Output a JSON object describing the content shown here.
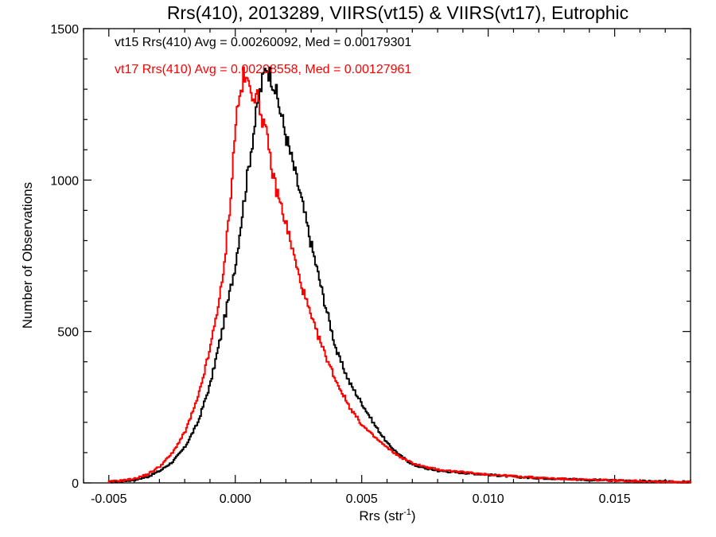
{
  "chart_data": {
    "type": "histogram-step",
    "title": "Rrs(410), 2013289, VIIRS(vt15) & VIIRS(vt17), Eutrophic",
    "xlabel_main": "Rrs (str",
    "xlabel_sup": "-1",
    "xlabel_close": ")",
    "ylabel": "Number of Observations",
    "xlim": [
      -0.006,
      0.018
    ],
    "ylim": [
      0,
      1500
    ],
    "xticks": [
      -0.005,
      0.0,
      0.005,
      0.01,
      0.015
    ],
    "xtick_labels": [
      "-0.005",
      "0.000",
      "0.005",
      "0.010",
      "0.015"
    ],
    "yticks": [
      0,
      500,
      1000,
      1500
    ],
    "ytick_labels": [
      "0",
      "500",
      "1000",
      "1500"
    ],
    "legend_position": "top-left",
    "series": [
      {
        "name": "vt15",
        "legend": "vt15 Rrs(410) Avg = 0.00260092, Med = 0.00179301",
        "color": "#000000",
        "x": [
          -0.005,
          -0.0045,
          -0.004,
          -0.0035,
          -0.003,
          -0.0025,
          -0.002,
          -0.0015,
          -0.001,
          -0.0005,
          0.0,
          0.0003,
          0.0006,
          0.0009,
          0.0012,
          0.0015,
          0.002,
          0.0025,
          0.003,
          0.0035,
          0.004,
          0.0045,
          0.005,
          0.0055,
          0.006,
          0.0065,
          0.007,
          0.0075,
          0.008,
          0.009,
          0.01,
          0.011,
          0.012,
          0.013,
          0.014,
          0.015,
          0.016,
          0.017,
          0.018
        ],
        "y": [
          3,
          6,
          10,
          20,
          40,
          70,
          120,
          200,
          330,
          520,
          730,
          920,
          1100,
          1270,
          1380,
          1320,
          1140,
          970,
          780,
          600,
          430,
          330,
          260,
          190,
          130,
          90,
          60,
          48,
          40,
          33,
          27,
          20,
          16,
          13,
          10,
          8,
          6,
          4,
          3
        ]
      },
      {
        "name": "vt17",
        "legend": "vt17 Rrs(410) Avg = 0.00208558, Med = 0.00127961",
        "color": "#ff0000",
        "x": [
          -0.005,
          -0.0045,
          -0.004,
          -0.0035,
          -0.003,
          -0.0025,
          -0.002,
          -0.0015,
          -0.001,
          -0.0005,
          -0.0002,
          0.0,
          0.0003,
          0.0006,
          0.0009,
          0.0012,
          0.0015,
          0.002,
          0.0025,
          0.003,
          0.0035,
          0.004,
          0.0045,
          0.005,
          0.0055,
          0.006,
          0.0065,
          0.007,
          0.0075,
          0.008,
          0.009,
          0.01,
          0.011,
          0.012,
          0.013,
          0.014,
          0.015,
          0.016,
          0.017,
          0.018
        ],
        "y": [
          4,
          8,
          14,
          28,
          55,
          100,
          170,
          280,
          450,
          680,
          950,
          1200,
          1340,
          1300,
          1260,
          1150,
          1000,
          850,
          680,
          540,
          430,
          330,
          250,
          190,
          150,
          115,
          85,
          65,
          52,
          44,
          35,
          28,
          22,
          17,
          13,
          10,
          8,
          6,
          4,
          3
        ]
      }
    ]
  }
}
